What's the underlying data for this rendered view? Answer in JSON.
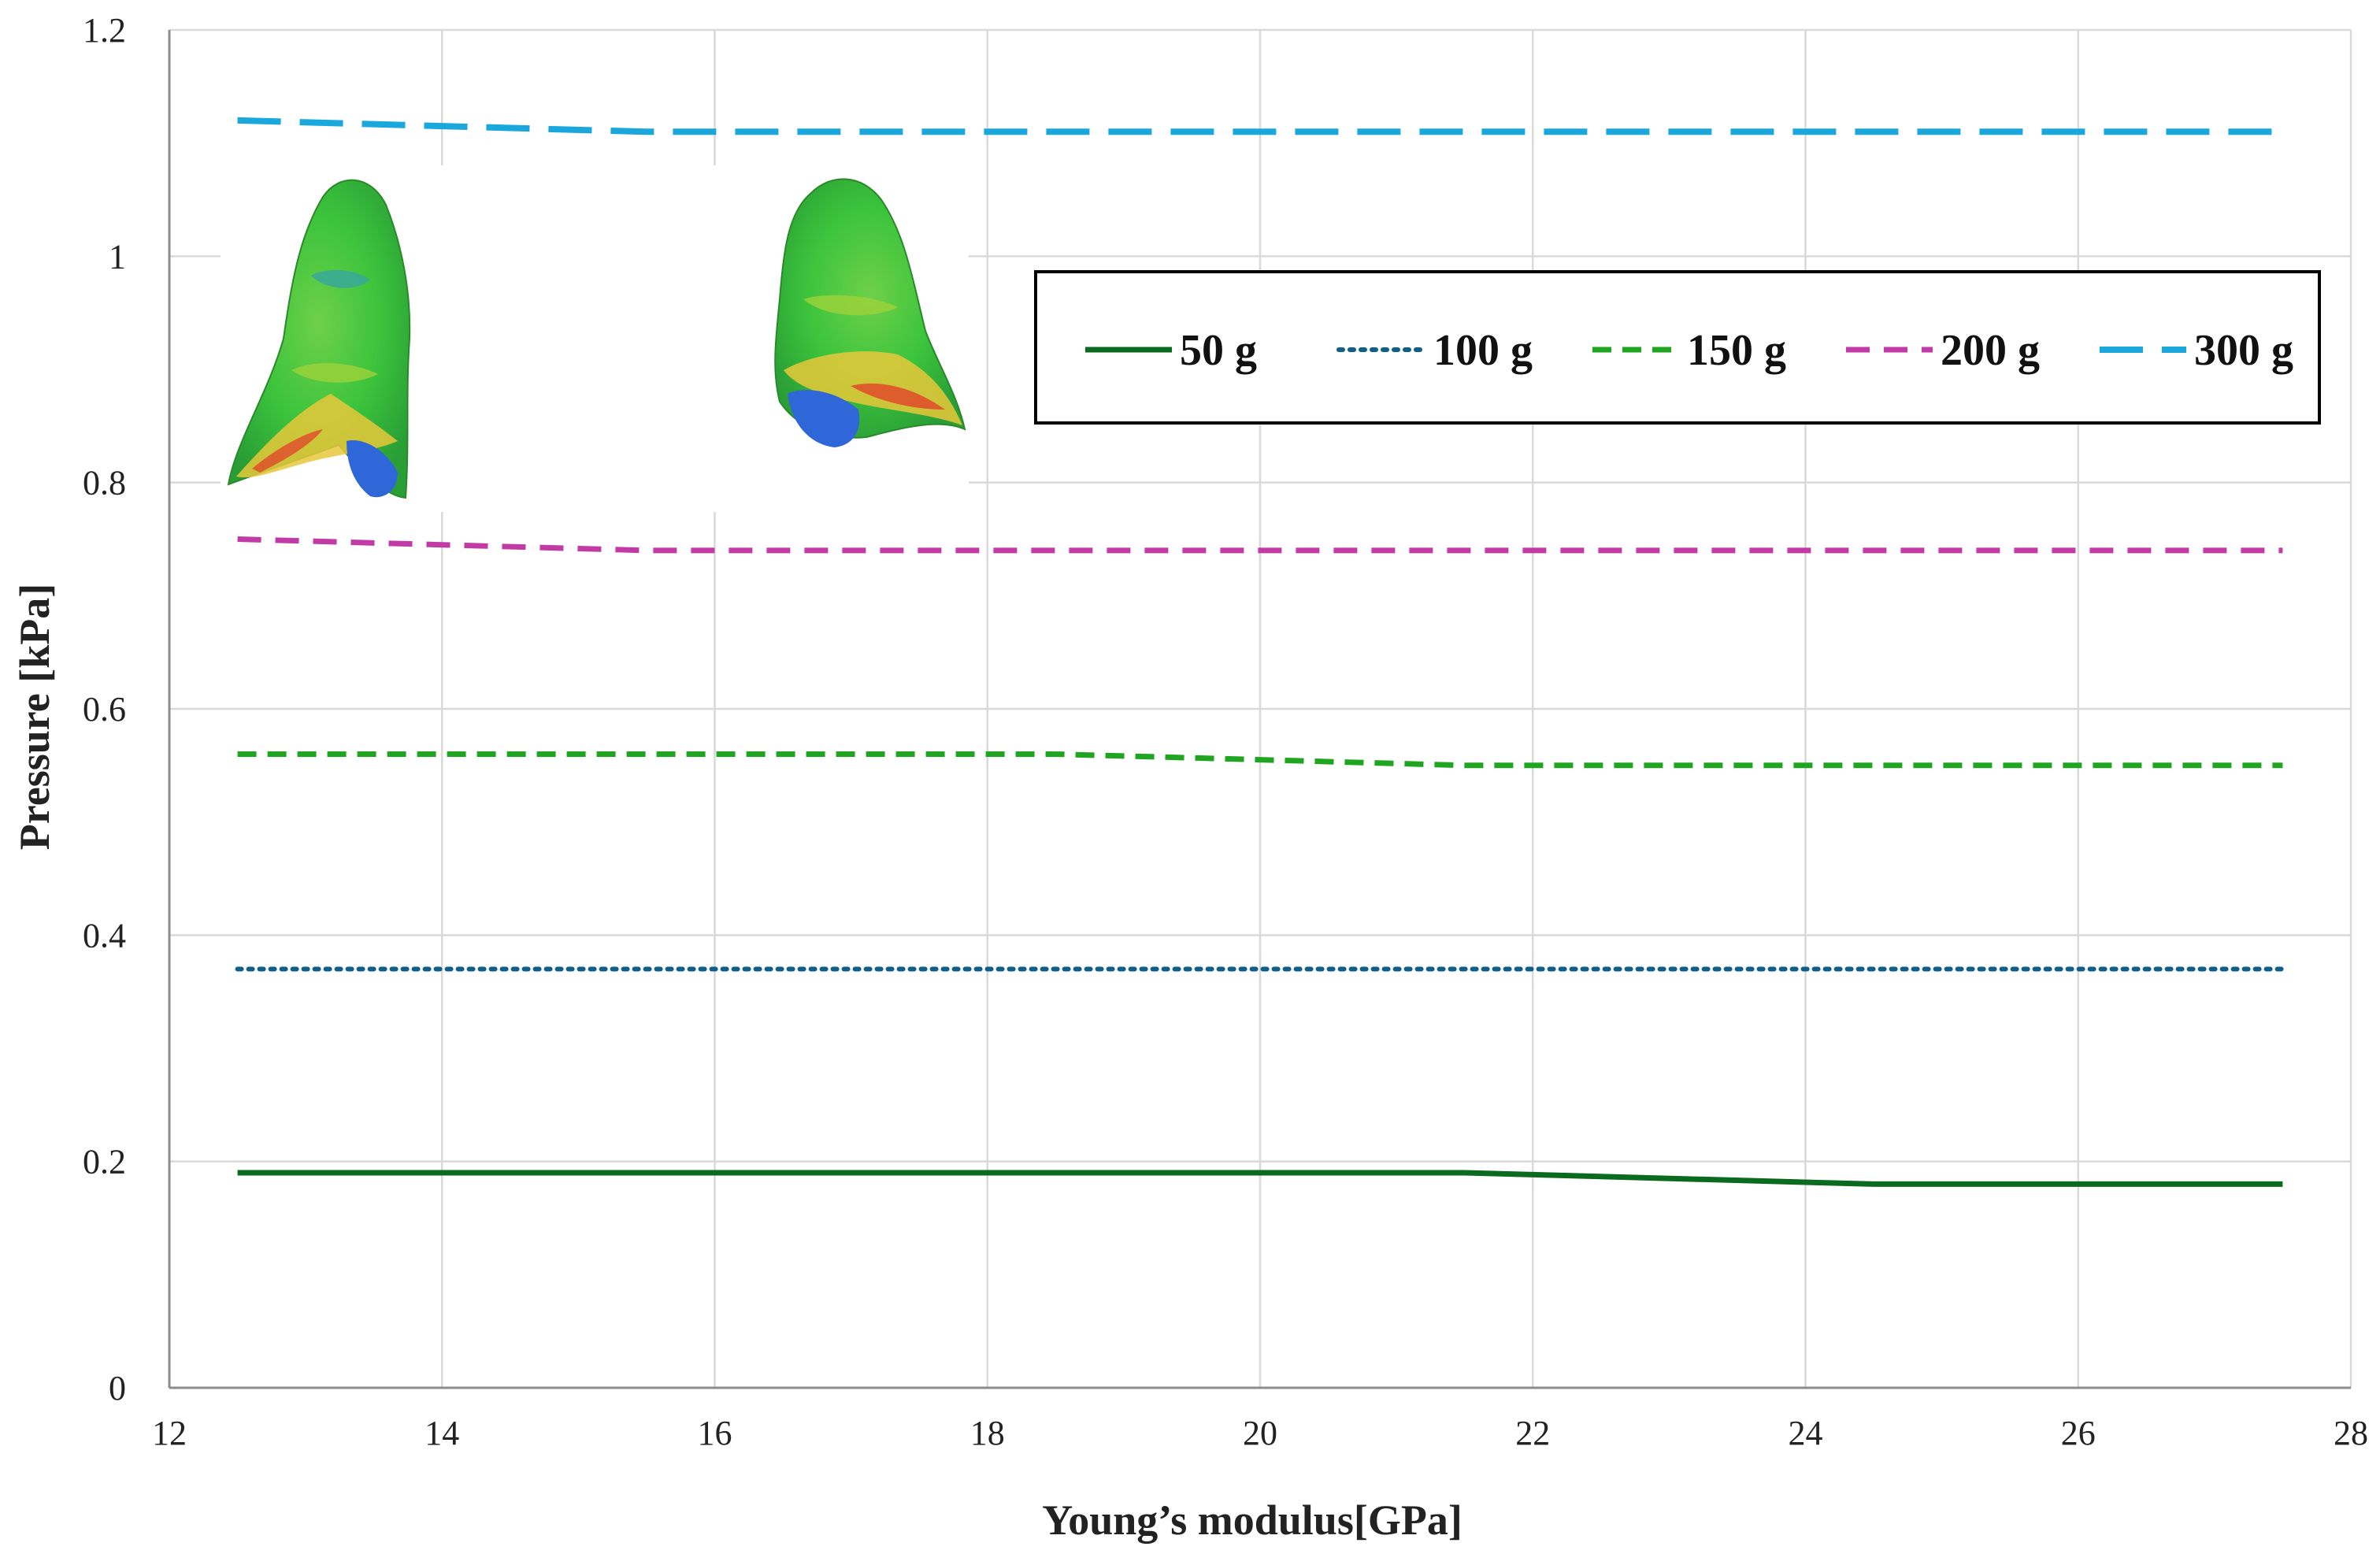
{
  "chart_data": {
    "type": "line",
    "title": "",
    "xlabel": "Young’s modulus[GPa]",
    "ylabel": "Pressure [kPa]",
    "xlim": [
      12,
      28
    ],
    "ylim": [
      0,
      1.2
    ],
    "xticks": [
      12,
      14,
      16,
      18,
      20,
      22,
      24,
      26,
      28
    ],
    "yticks": [
      0,
      0.2,
      0.4,
      0.6,
      0.8,
      1,
      1.2
    ],
    "ytick_labels": [
      "0",
      "0.2",
      "0.4",
      "0.6",
      "0.8",
      "1",
      "1.2"
    ],
    "grid": true,
    "legend_position": "top-right",
    "series": [
      {
        "name": "50 g",
        "color": "#0a6b1f",
        "style": "solid",
        "x": [
          12.5,
          14,
          16,
          18,
          20,
          21.5,
          24.5,
          26,
          27.5
        ],
        "y": [
          0.19,
          0.19,
          0.19,
          0.19,
          0.19,
          0.19,
          0.18,
          0.18,
          0.18
        ]
      },
      {
        "name": "100 g",
        "color": "#0e5f8a",
        "style": "dotted",
        "x": [
          12.5,
          14,
          16,
          18,
          20,
          22,
          24,
          26,
          27.5
        ],
        "y": [
          0.37,
          0.37,
          0.37,
          0.37,
          0.37,
          0.37,
          0.37,
          0.37,
          0.37
        ]
      },
      {
        "name": "150 g",
        "color": "#1fa51f",
        "style": "dashed",
        "x": [
          12.5,
          14,
          16,
          18.5,
          20,
          21.5,
          24,
          26,
          27.5
        ],
        "y": [
          0.56,
          0.56,
          0.56,
          0.56,
          0.555,
          0.55,
          0.55,
          0.55,
          0.55
        ]
      },
      {
        "name": "200 g",
        "color": "#c23aa6",
        "style": "dashed",
        "x": [
          12.5,
          14,
          15.5,
          18,
          20,
          22,
          24,
          26,
          27.5
        ],
        "y": [
          0.75,
          0.745,
          0.74,
          0.74,
          0.74,
          0.74,
          0.74,
          0.74,
          0.74
        ]
      },
      {
        "name": "300 g",
        "color": "#1aa7dc",
        "style": "long-dashed",
        "x": [
          12.5,
          14,
          15.5,
          18,
          20,
          22,
          24,
          26,
          27.5
        ],
        "y": [
          1.12,
          1.115,
          1.11,
          1.11,
          1.11,
          1.11,
          1.11,
          1.11,
          1.11
        ]
      }
    ],
    "inset_images": [
      {
        "description_name": "tooth-model-left",
        "colors": [
          "#3cc43c",
          "#e8d23a",
          "#e04a2a",
          "#2f66d8"
        ]
      },
      {
        "description_name": "tooth-model-right",
        "colors": [
          "#3cc43c",
          "#e8d23a",
          "#e04a2a",
          "#2f66d8"
        ]
      }
    ]
  }
}
